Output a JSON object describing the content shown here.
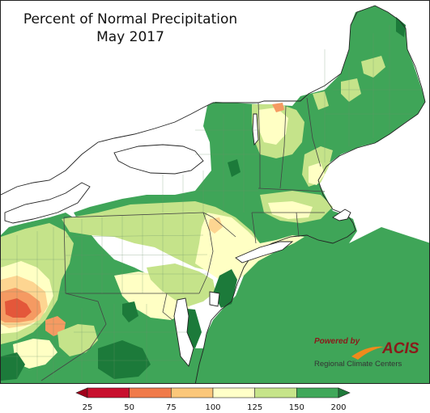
{
  "title": {
    "line1": "Percent of Normal Precipitation",
    "line2": "May 2017"
  },
  "attribution": {
    "powered_by": "Powered by",
    "brand": "ACIS",
    "org": "Regional Climate Centers"
  },
  "legend": {
    "ticks": [
      "25",
      "50",
      "75",
      "100",
      "125",
      "150",
      "200"
    ],
    "bins": [
      {
        "color": "#c8102e"
      },
      {
        "color": "#f07a4a"
      },
      {
        "color": "#fbc77a"
      },
      {
        "color": "#ffffc8"
      },
      {
        "color": "#c6e48a"
      },
      {
        "color": "#40a85a"
      }
    ],
    "low_arrow_color": "#a0001a",
    "high_arrow_color": "#1f7a3a"
  },
  "colors": {
    "dry_severe": "#e4573a",
    "dry": "#f59a62",
    "below_normal": "#fdd591",
    "near_normal": "#ffffc4",
    "above_normal": "#c5e38a",
    "wet": "#3fa558",
    "very_wet": "#1c7a3a",
    "water": "#ffffff"
  }
}
